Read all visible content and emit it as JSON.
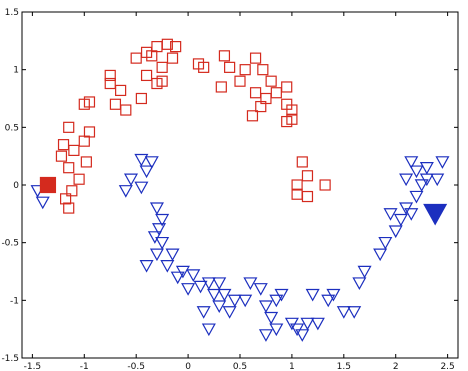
{
  "chart_data": {
    "type": "scatter",
    "title": "",
    "xlabel": "",
    "ylabel": "",
    "xlim": [
      -1.6,
      2.6
    ],
    "ylim": [
      -1.5,
      1.5
    ],
    "x_ticks": [
      -1.5,
      -1,
      -0.5,
      0,
      0.5,
      1,
      1.5,
      2,
      2.5
    ],
    "x_tick_labels": [
      "-1.5",
      "-1",
      "-0.5",
      "0",
      "0.5",
      "1",
      "1.5",
      "2",
      "2.5"
    ],
    "y_ticks": [
      1.5,
      1,
      0.5,
      0,
      -0.5,
      -1,
      -1.5
    ],
    "y_tick_labels": [
      "1.5",
      "1",
      "0.5",
      "0",
      "-0.5",
      "-1",
      "-1.5"
    ],
    "grid": false,
    "legend": "none",
    "colors": {
      "class_a": "#d42a1e",
      "class_b": "#1c2fbf"
    },
    "series": [
      {
        "marker": "square-open",
        "color": "#d42a1e",
        "points": [
          [
            -1.15,
            0.5
          ],
          [
            -1.2,
            0.35
          ],
          [
            -1.22,
            0.25
          ],
          [
            -1.1,
            0.3
          ],
          [
            -1.15,
            0.15
          ],
          [
            -1.0,
            0.38
          ],
          [
            -0.95,
            0.46
          ],
          [
            -0.98,
            0.2
          ],
          [
            -1.12,
            -0.05
          ],
          [
            -1.18,
            -0.12
          ],
          [
            -1.15,
            -0.2
          ],
          [
            -1.05,
            0.05
          ],
          [
            -1.0,
            0.7
          ],
          [
            -0.95,
            0.72
          ],
          [
            -0.75,
            0.88
          ],
          [
            -0.75,
            0.95
          ],
          [
            -0.65,
            0.82
          ],
          [
            -0.7,
            0.7
          ],
          [
            -0.6,
            0.65
          ],
          [
            -0.5,
            1.1
          ],
          [
            -0.4,
            1.15
          ],
          [
            -0.35,
            1.12
          ],
          [
            -0.3,
            1.2
          ],
          [
            -0.2,
            1.22
          ],
          [
            -0.15,
            1.1
          ],
          [
            -0.12,
            1.2
          ],
          [
            -0.25,
            1.02
          ],
          [
            -0.4,
            0.95
          ],
          [
            -0.25,
            0.9
          ],
          [
            -0.3,
            0.88
          ],
          [
            -0.45,
            0.75
          ],
          [
            0.1,
            1.05
          ],
          [
            0.15,
            1.02
          ],
          [
            0.35,
            1.12
          ],
          [
            0.4,
            1.02
          ],
          [
            0.55,
            1.0
          ],
          [
            0.65,
            1.1
          ],
          [
            0.72,
            1.0
          ],
          [
            0.8,
            0.9
          ],
          [
            0.65,
            0.8
          ],
          [
            0.75,
            0.75
          ],
          [
            0.85,
            0.8
          ],
          [
            0.95,
            0.85
          ],
          [
            0.95,
            0.7
          ],
          [
            1.0,
            0.65
          ],
          [
            1.0,
            0.57
          ],
          [
            0.95,
            0.55
          ],
          [
            0.7,
            0.68
          ],
          [
            0.62,
            0.6
          ],
          [
            0.32,
            0.85
          ],
          [
            1.1,
            0.2
          ],
          [
            1.15,
            0.08
          ],
          [
            1.05,
            -0.08
          ],
          [
            1.15,
            -0.1
          ],
          [
            1.32,
            0.0
          ],
          [
            1.05,
            0.0
          ],
          [
            0.5,
            0.9
          ]
        ]
      },
      {
        "marker": "triangle-down-open",
        "color": "#1c2fbf",
        "points": [
          [
            -0.45,
            0.22
          ],
          [
            -0.35,
            0.2
          ],
          [
            -0.4,
            0.12
          ],
          [
            -0.55,
            0.05
          ],
          [
            -0.45,
            -0.02
          ],
          [
            -0.3,
            -0.2
          ],
          [
            -0.25,
            -0.3
          ],
          [
            -0.28,
            -0.38
          ],
          [
            -0.32,
            -0.45
          ],
          [
            -0.25,
            -0.5
          ],
          [
            -0.15,
            -0.6
          ],
          [
            -0.3,
            -0.6
          ],
          [
            -0.4,
            -0.7
          ],
          [
            -0.2,
            -0.7
          ],
          [
            -0.1,
            -0.8
          ],
          [
            -0.05,
            -0.75
          ],
          [
            0.0,
            -0.9
          ],
          [
            0.05,
            -0.78
          ],
          [
            0.12,
            -0.88
          ],
          [
            0.2,
            -0.85
          ],
          [
            0.25,
            -0.95
          ],
          [
            0.35,
            -0.95
          ],
          [
            0.3,
            -1.05
          ],
          [
            0.45,
            -1.0
          ],
          [
            0.15,
            -1.1
          ],
          [
            0.2,
            -1.25
          ],
          [
            0.4,
            -1.1
          ],
          [
            0.55,
            -1.0
          ],
          [
            0.6,
            -0.85
          ],
          [
            0.7,
            -0.9
          ],
          [
            0.75,
            -1.05
          ],
          [
            0.85,
            -1.0
          ],
          [
            0.9,
            -0.95
          ],
          [
            0.8,
            -1.15
          ],
          [
            0.75,
            -1.3
          ],
          [
            0.85,
            -1.25
          ],
          [
            1.0,
            -1.2
          ],
          [
            1.1,
            -1.3
          ],
          [
            1.15,
            -1.2
          ],
          [
            1.05,
            -1.25
          ],
          [
            1.25,
            -1.2
          ],
          [
            1.2,
            -0.95
          ],
          [
            1.4,
            -0.95
          ],
          [
            1.5,
            -1.1
          ],
          [
            1.6,
            -1.1
          ],
          [
            1.65,
            -0.85
          ],
          [
            1.7,
            -0.75
          ],
          [
            1.85,
            -0.6
          ],
          [
            1.9,
            -0.5
          ],
          [
            2.0,
            -0.4
          ],
          [
            2.05,
            -0.3
          ],
          [
            2.1,
            -0.2
          ],
          [
            2.15,
            -0.25
          ],
          [
            2.2,
            -0.1
          ],
          [
            2.25,
            0.0
          ],
          [
            2.3,
            0.05
          ],
          [
            2.2,
            0.12
          ],
          [
            2.3,
            0.15
          ],
          [
            2.4,
            0.05
          ],
          [
            2.15,
            0.2
          ],
          [
            2.1,
            0.05
          ],
          [
            1.95,
            -0.25
          ],
          [
            2.45,
            0.2
          ],
          [
            -1.45,
            -0.05
          ],
          [
            -1.4,
            -0.15
          ],
          [
            -0.6,
            -0.05
          ],
          [
            0.3,
            -0.85
          ],
          [
            1.35,
            -1.0
          ]
        ]
      }
    ],
    "highlighted": [
      {
        "marker": "square-filled",
        "color": "#d42a1e",
        "x": -1.35,
        "y": 0.0
      },
      {
        "marker": "triangle-down-filled",
        "color": "#1c2fbf",
        "x": 2.38,
        "y": -0.25
      }
    ]
  }
}
